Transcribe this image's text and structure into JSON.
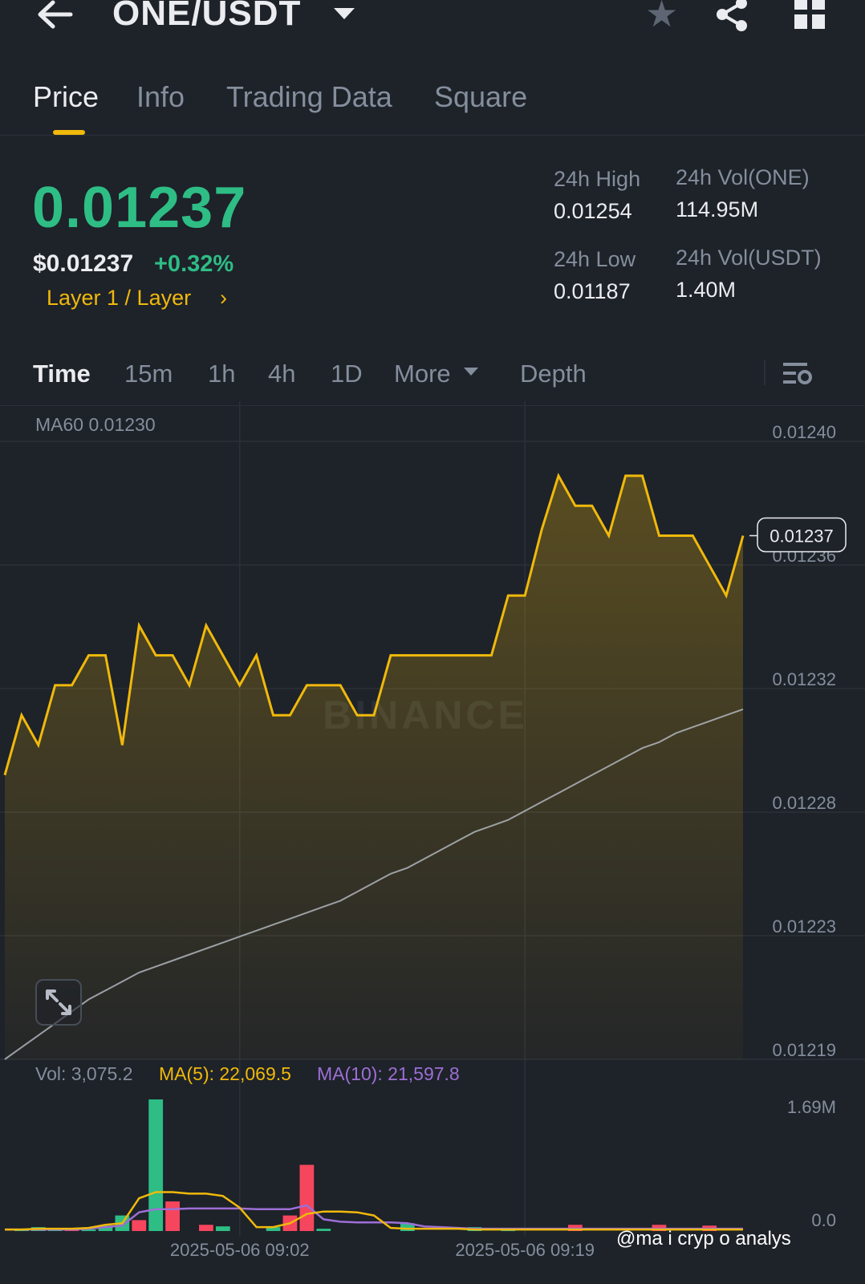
{
  "header": {
    "pair": "ONE/USDT",
    "icons": [
      "back-arrow-icon",
      "dropdown-caret-icon",
      "star-icon",
      "share-icon",
      "grid-menu-icon"
    ]
  },
  "tabs": [
    {
      "label": "Price",
      "active": true
    },
    {
      "label": "Info",
      "active": false
    },
    {
      "label": "Trading Data",
      "active": false
    },
    {
      "label": "Square",
      "active": false
    }
  ],
  "ticker": {
    "last_price": "0.01237",
    "usd_price": "$0.01237",
    "change_pct": "+0.32%",
    "sector": "Layer 1 / Layer",
    "sector_chevron": "›",
    "high_label": "24h High",
    "high_value": "0.01254",
    "low_label": "24h Low",
    "low_value": "0.01187",
    "vol_base_label": "24h Vol(ONE)",
    "vol_base_value": "114.95M",
    "vol_quote_label": "24h Vol(USDT)",
    "vol_quote_value": "1.40M"
  },
  "intervals": [
    {
      "label": "Time",
      "active": true
    },
    {
      "label": "15m",
      "active": false
    },
    {
      "label": "1h",
      "active": false
    },
    {
      "label": "4h",
      "active": false
    },
    {
      "label": "1D",
      "active": false
    },
    {
      "label": "More",
      "active": false
    },
    {
      "label": "Depth",
      "active": false
    }
  ],
  "colors": {
    "up": "#2ebd85",
    "down": "#f6465d",
    "accent": "#f0b90b",
    "ma10": "#9c6fd6",
    "ma60": "#b7bdc6",
    "background": "#1e2229"
  },
  "chart": {
    "ma60_legend": "MA60 0.01230",
    "current_price_tag": "0.01237",
    "vol_legend": "Vol: 3,075.2",
    "ma5_legend": "MA(5): 22,069.5",
    "ma10_legend": "MA(10): 21,597.8",
    "brand_watermark": "BINANCE",
    "user_watermark": "@ma i cryp o analys"
  },
  "chart_data": {
    "type": "area",
    "price_axis_ticks": [
      "0.01240",
      "0.01236",
      "0.01232",
      "0.01228",
      "0.01223",
      "0.01219"
    ],
    "price_axis_values": [
      0.0124,
      0.01236,
      0.01232,
      0.01228,
      0.01223,
      0.01219
    ],
    "ylim": [
      0.01219,
      0.0124
    ],
    "x_ticks": [
      "2025-05-06 09:02",
      "2025-05-06 09:19"
    ],
    "x_tick_index": [
      14,
      31
    ],
    "price_series": {
      "name": "price",
      "values": [
        0.012285,
        0.012305,
        0.012295,
        0.012315,
        0.012315,
        0.012325,
        0.012325,
        0.012295,
        0.012335,
        0.012325,
        0.012325,
        0.012315,
        0.012335,
        0.012325,
        0.012315,
        0.012325,
        0.012305,
        0.012305,
        0.012315,
        0.012315,
        0.012315,
        0.012305,
        0.012305,
        0.012325,
        0.012325,
        0.012325,
        0.012325,
        0.012325,
        0.012325,
        0.012325,
        0.012345,
        0.012345,
        0.012367,
        0.012385,
        0.012375,
        0.012375,
        0.012365,
        0.012385,
        0.012385,
        0.012365,
        0.012365,
        0.012365,
        0.012355,
        0.012345,
        0.012365
      ]
    },
    "ma60_series": {
      "name": "MA60",
      "values": [
        0.01219,
        0.012194,
        0.012198,
        0.012202,
        0.012206,
        0.01221,
        0.012213,
        0.012216,
        0.012219,
        0.012221,
        0.012223,
        0.012225,
        0.012227,
        0.012229,
        0.012231,
        0.012233,
        0.012235,
        0.012237,
        0.012239,
        0.012241,
        0.012243,
        0.012246,
        0.012249,
        0.012252,
        0.012254,
        0.012257,
        0.01226,
        0.012263,
        0.012266,
        0.012268,
        0.01227,
        0.012273,
        0.012276,
        0.012279,
        0.012282,
        0.012285,
        0.012288,
        0.012291,
        0.012294,
        0.012296,
        0.012299,
        0.012301,
        0.012303,
        0.012305,
        0.012307
      ]
    },
    "volume_axis_ticks": [
      "1.69M",
      "0.0"
    ],
    "volume_ylim": [
      0,
      1.69
    ],
    "volume_bars": [
      {
        "i": 1,
        "v": 0.02,
        "dir": "up"
      },
      {
        "i": 2,
        "v": 0.05,
        "dir": "up"
      },
      {
        "i": 3,
        "v": 0.03,
        "dir": "up"
      },
      {
        "i": 4,
        "v": 0.03,
        "dir": "down"
      },
      {
        "i": 5,
        "v": 0.02,
        "dir": "up"
      },
      {
        "i": 6,
        "v": 0.07,
        "dir": "up"
      },
      {
        "i": 7,
        "v": 0.2,
        "dir": "up"
      },
      {
        "i": 8,
        "v": 0.14,
        "dir": "down"
      },
      {
        "i": 9,
        "v": 1.69,
        "dir": "up"
      },
      {
        "i": 10,
        "v": 0.38,
        "dir": "down"
      },
      {
        "i": 12,
        "v": 0.08,
        "dir": "down"
      },
      {
        "i": 13,
        "v": 0.06,
        "dir": "up"
      },
      {
        "i": 16,
        "v": 0.05,
        "dir": "up"
      },
      {
        "i": 17,
        "v": 0.2,
        "dir": "down"
      },
      {
        "i": 18,
        "v": 0.85,
        "dir": "down"
      },
      {
        "i": 19,
        "v": 0.03,
        "dir": "up"
      },
      {
        "i": 24,
        "v": 0.1,
        "dir": "up"
      },
      {
        "i": 28,
        "v": 0.05,
        "dir": "up"
      },
      {
        "i": 30,
        "v": 0.02,
        "dir": "up"
      },
      {
        "i": 34,
        "v": 0.08,
        "dir": "down"
      },
      {
        "i": 39,
        "v": 0.08,
        "dir": "down"
      },
      {
        "i": 42,
        "v": 0.07,
        "dir": "down"
      }
    ],
    "vol_ma5": {
      "name": "MA(5)",
      "values": [
        0.02,
        0.02,
        0.03,
        0.03,
        0.03,
        0.04,
        0.08,
        0.1,
        0.42,
        0.5,
        0.5,
        0.48,
        0.48,
        0.45,
        0.3,
        0.05,
        0.05,
        0.1,
        0.22,
        0.25,
        0.25,
        0.24,
        0.2,
        0.04,
        0.03,
        0.03,
        0.03,
        0.03,
        0.02,
        0.02,
        0.02,
        0.02,
        0.02,
        0.02,
        0.02,
        0.02,
        0.02,
        0.02,
        0.02,
        0.02,
        0.02,
        0.02,
        0.02,
        0.02,
        0.02
      ]
    },
    "vol_ma10": {
      "name": "MA(10)",
      "values": [
        0.02,
        0.02,
        0.02,
        0.02,
        0.02,
        0.03,
        0.05,
        0.07,
        0.24,
        0.28,
        0.28,
        0.29,
        0.29,
        0.29,
        0.29,
        0.28,
        0.28,
        0.28,
        0.33,
        0.15,
        0.12,
        0.11,
        0.11,
        0.11,
        0.1,
        0.06,
        0.05,
        0.04,
        0.03,
        0.03,
        0.03,
        0.03,
        0.03,
        0.03,
        0.03,
        0.03,
        0.03,
        0.03,
        0.03,
        0.03,
        0.03,
        0.03,
        0.03,
        0.03,
        0.03
      ]
    }
  }
}
